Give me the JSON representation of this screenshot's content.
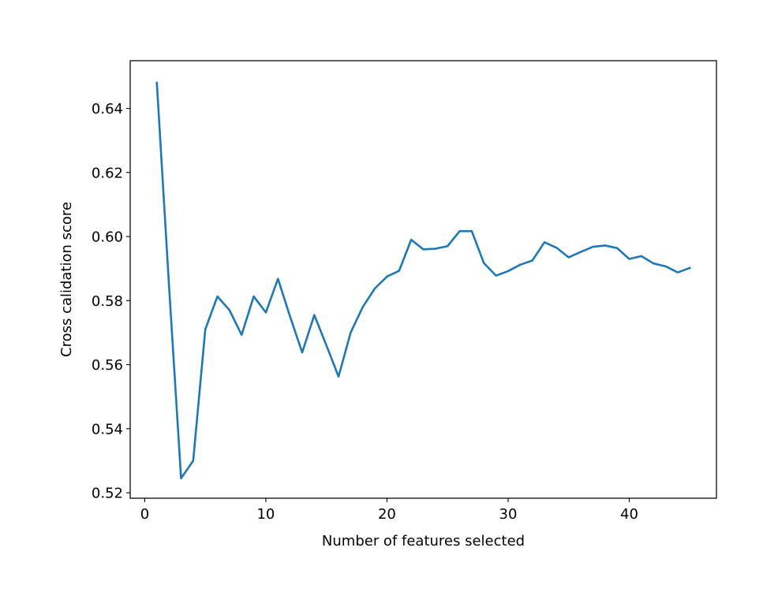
{
  "chart_data": {
    "type": "line",
    "title": "",
    "xlabel": "Number of features selected",
    "ylabel": "Cross calidation score",
    "xlim": [
      -1.2,
      47.2
    ],
    "ylim": [
      0.5183,
      0.6549
    ],
    "xticks": [
      0,
      10,
      20,
      30,
      40
    ],
    "xtick_labels": [
      "0",
      "10",
      "20",
      "30",
      "40"
    ],
    "yticks": [
      0.52,
      0.54,
      0.56,
      0.58,
      0.6,
      0.62,
      0.64
    ],
    "ytick_labels": [
      "0.52",
      "0.54",
      "0.56",
      "0.58",
      "0.60",
      "0.62",
      "0.64"
    ],
    "grid": false,
    "legend": "none",
    "line_color": "#1f77b4",
    "series": [
      {
        "x": [
          1,
          2,
          3,
          4,
          5,
          6,
          7,
          8,
          9,
          10,
          11,
          12,
          13,
          14,
          15,
          16,
          17,
          18,
          19,
          20,
          21,
          22,
          23,
          24,
          25,
          26,
          27,
          28,
          29,
          30,
          31,
          32,
          33,
          34,
          35,
          36,
          37,
          38,
          39,
          40,
          41,
          42,
          43,
          44,
          45
        ],
        "values": [
          0.648,
          0.585,
          0.5245,
          0.53,
          0.571,
          0.5813,
          0.577,
          0.5693,
          0.5813,
          0.5763,
          0.5868,
          0.575,
          0.5638,
          0.5755,
          0.566,
          0.5563,
          0.57,
          0.578,
          0.5838,
          0.5875,
          0.5893,
          0.599,
          0.596,
          0.5962,
          0.597,
          0.6017,
          0.6017,
          0.5917,
          0.5878,
          0.5892,
          0.5912,
          0.5925,
          0.5982,
          0.5965,
          0.5935,
          0.5952,
          0.5968,
          0.5972,
          0.5964,
          0.593,
          0.5939,
          0.5916,
          0.5907,
          0.5888,
          0.5902
        ]
      }
    ]
  }
}
